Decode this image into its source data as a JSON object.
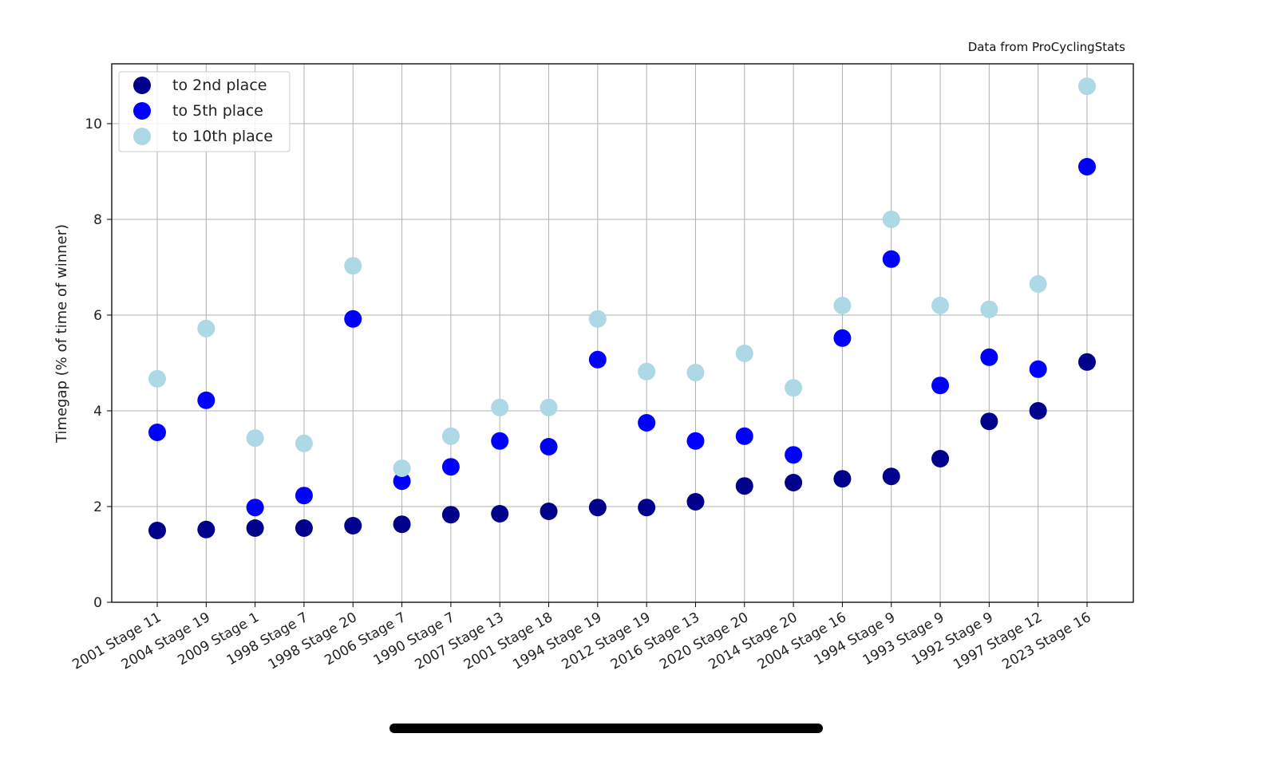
{
  "chart_data": {
    "type": "scatter",
    "title": "",
    "source_note": "Data from ProCyclingStats",
    "xlabel": "",
    "ylabel": "Timegap (% of time of winner)",
    "ylim": [
      0,
      11.2
    ],
    "yticks": [
      0,
      2,
      4,
      6,
      8,
      10
    ],
    "grid": true,
    "legend_position": "top-left",
    "categories": [
      "2001 Stage 11",
      "2004 Stage 19",
      "2009 Stage 1",
      "1998 Stage 7",
      "1998 Stage 20",
      "2006 Stage 7",
      "1990 Stage 7",
      "2007 Stage 13",
      "2001 Stage 18",
      "1994 Stage 19",
      "2012 Stage 19",
      "2016 Stage 13",
      "2020 Stage 20",
      "2014 Stage 20",
      "2004 Stage 16",
      "1994 Stage 9",
      "1993 Stage 9",
      "1992 Stage 9",
      "1997 Stage 12",
      "2023 Stage 16"
    ],
    "series": [
      {
        "name": "to 2nd place",
        "color": "#00008b",
        "values": [
          1.5,
          1.52,
          1.55,
          1.55,
          1.6,
          1.63,
          1.83,
          1.85,
          1.9,
          1.98,
          1.98,
          2.1,
          2.43,
          2.5,
          2.58,
          2.63,
          3.0,
          3.78,
          4.0,
          5.02
        ]
      },
      {
        "name": "to 5th place",
        "color": "#0000ff",
        "values": [
          3.55,
          4.22,
          1.98,
          2.23,
          5.92,
          2.53,
          2.83,
          3.37,
          3.25,
          5.07,
          3.75,
          3.37,
          3.47,
          3.08,
          5.52,
          7.17,
          4.53,
          5.12,
          4.87,
          9.1
        ]
      },
      {
        "name": "to 10th place",
        "color": "#add8e6",
        "values": [
          4.67,
          5.72,
          3.43,
          3.32,
          7.03,
          2.8,
          3.47,
          4.07,
          4.07,
          5.92,
          4.82,
          4.8,
          5.2,
          4.48,
          6.2,
          8.0,
          6.2,
          6.12,
          6.65,
          10.78
        ]
      }
    ]
  }
}
